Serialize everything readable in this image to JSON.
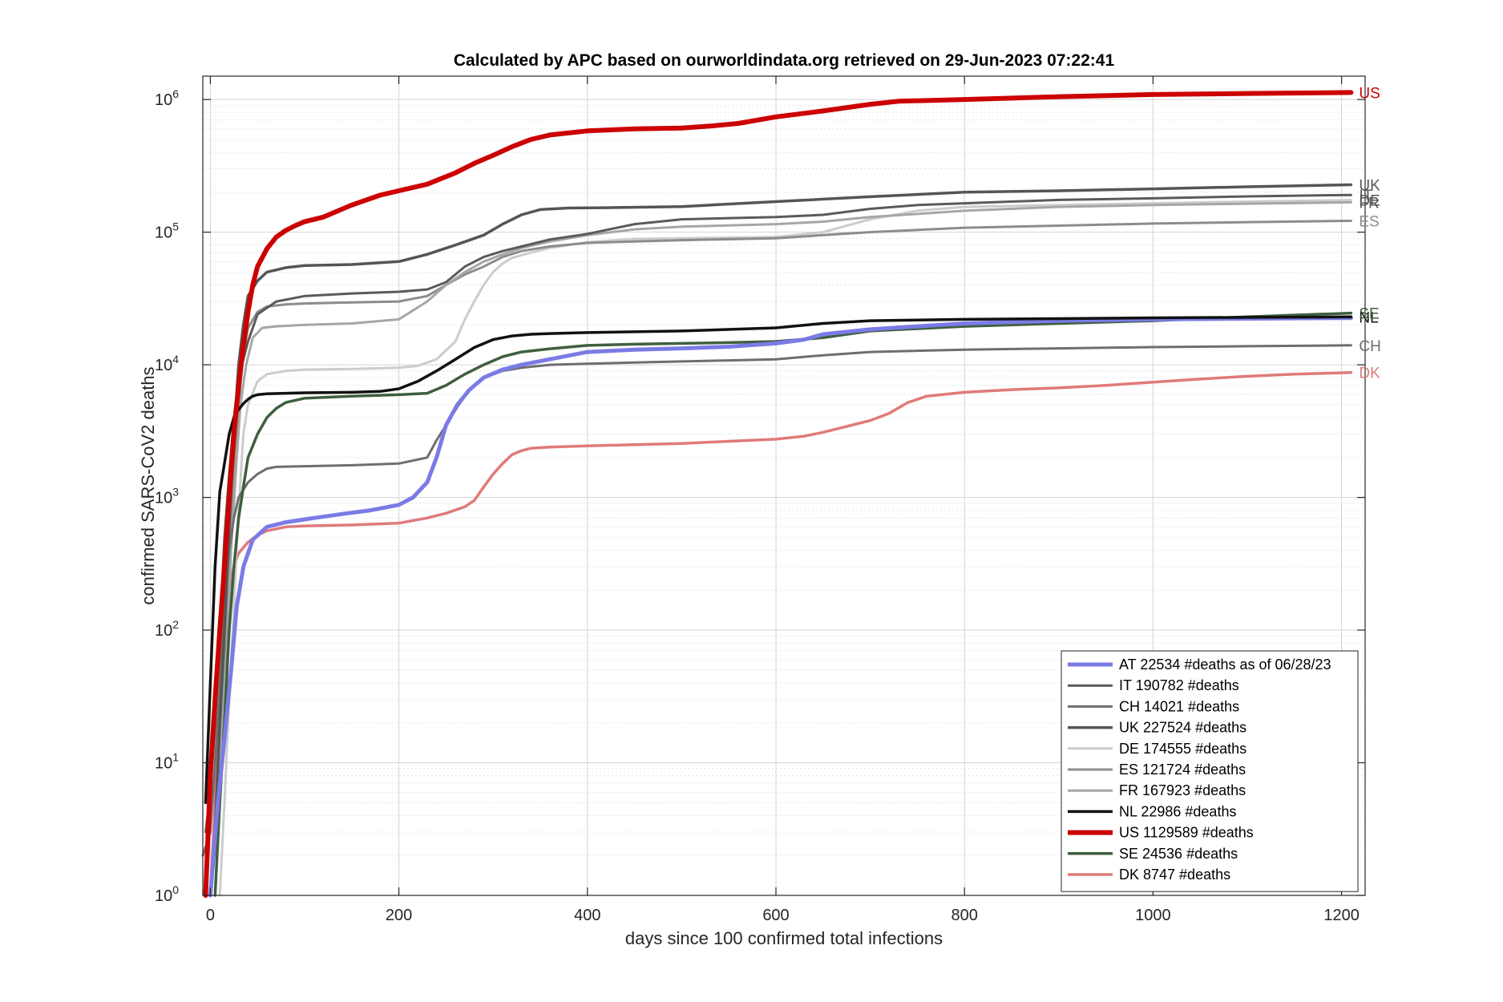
{
  "chart_data": {
    "type": "line",
    "title": "Calculated by APC based on ourworldindata.org retrieved on 29-Jun-2023 07:22:41",
    "xlabel": "days since 100 confirmed total infections",
    "ylabel": "confirmed SARS-CoV2 deaths",
    "xlim": [
      -8,
      1225
    ],
    "ylim": [
      1,
      1500000
    ],
    "yscale": "log",
    "grid": true,
    "legend_position": "bottom-right",
    "x_ticks": [
      {
        "value": 0,
        "label": "0"
      },
      {
        "value": 200,
        "label": "200"
      },
      {
        "value": 400,
        "label": "400"
      },
      {
        "value": 600,
        "label": "600"
      },
      {
        "value": 800,
        "label": "800"
      },
      {
        "value": 1000,
        "label": "1000"
      },
      {
        "value": 1200,
        "label": "1200"
      }
    ],
    "y_ticks": [
      {
        "value": 1,
        "base": "10",
        "exp": "0"
      },
      {
        "value": 10,
        "base": "10",
        "exp": "1"
      },
      {
        "value": 100,
        "base": "10",
        "exp": "2"
      },
      {
        "value": 1000,
        "base": "10",
        "exp": "3"
      },
      {
        "value": 10000,
        "base": "10",
        "exp": "4"
      },
      {
        "value": 100000,
        "base": "10",
        "exp": "5"
      },
      {
        "value": 1000000,
        "base": "10",
        "exp": "6"
      }
    ],
    "series": [
      {
        "name": "AT 22534 #deaths as of  06/28/23",
        "label": "",
        "color": "#7b7be6",
        "width": 5,
        "x": [
          0,
          8,
          15,
          22,
          28,
          35,
          45,
          60,
          80,
          110,
          140,
          170,
          200,
          215,
          230,
          240,
          250,
          262,
          275,
          290,
          310,
          330,
          360,
          400,
          450,
          500,
          550,
          600,
          630,
          650,
          700,
          750,
          800,
          900,
          1000,
          1100,
          1210
        ],
        "y": [
          1,
          5,
          15,
          50,
          150,
          300,
          480,
          600,
          650,
          700,
          750,
          800,
          880,
          1000,
          1300,
          2000,
          3500,
          5000,
          6500,
          8000,
          9200,
          10000,
          11000,
          12500,
          13000,
          13300,
          13700,
          14500,
          15500,
          17000,
          18500,
          19500,
          20500,
          21500,
          22000,
          22300,
          22534
        ]
      },
      {
        "name": "IT 190782 #deaths",
        "label": "IT",
        "color": "#5a5a5a",
        "width": 3,
        "x": [
          -5,
          0,
          5,
          10,
          15,
          20,
          25,
          30,
          40,
          50,
          70,
          100,
          150,
          200,
          230,
          250,
          270,
          290,
          310,
          330,
          360,
          400,
          450,
          500,
          600,
          650,
          700,
          750,
          800,
          900,
          1000,
          1100,
          1210
        ],
        "y": [
          3,
          6,
          20,
          100,
          500,
          1500,
          4000,
          8000,
          15000,
          24000,
          30000,
          33000,
          34500,
          35500,
          37000,
          42000,
          55000,
          65000,
          72000,
          78000,
          88000,
          97000,
          115000,
          125000,
          130000,
          135000,
          150000,
          160000,
          165000,
          175000,
          180000,
          186000,
          190782
        ]
      },
      {
        "name": "CH 14021 #deaths",
        "label": "CH",
        "color": "#6e6e6e",
        "width": 3,
        "x": [
          -8,
          0,
          5,
          10,
          15,
          20,
          25,
          30,
          40,
          50,
          60,
          70,
          100,
          150,
          200,
          230,
          240,
          250,
          262,
          275,
          290,
          310,
          330,
          360,
          400,
          450,
          500,
          550,
          600,
          650,
          700,
          800,
          900,
          1000,
          1100,
          1210
        ],
        "y": [
          2,
          3,
          10,
          40,
          150,
          400,
          700,
          1000,
          1300,
          1500,
          1650,
          1700,
          1720,
          1750,
          1800,
          2000,
          2700,
          3500,
          4800,
          6500,
          8000,
          9000,
          9500,
          10000,
          10200,
          10400,
          10600,
          10800,
          11000,
          11800,
          12500,
          13000,
          13300,
          13600,
          13800,
          14021
        ]
      },
      {
        "name": "UK 227524 #deaths",
        "label": "UK",
        "color": "#555555",
        "width": 3.5,
        "x": [
          5,
          10,
          15,
          20,
          25,
          30,
          35,
          40,
          50,
          60,
          80,
          100,
          150,
          200,
          230,
          260,
          290,
          310,
          330,
          350,
          380,
          420,
          500,
          600,
          700,
          800,
          900,
          1000,
          1100,
          1210
        ],
        "y": [
          3,
          20,
          100,
          600,
          3000,
          10000,
          20000,
          33000,
          43000,
          50000,
          54000,
          56000,
          57000,
          60000,
          68000,
          80000,
          95000,
          115000,
          135000,
          148000,
          152000,
          153000,
          156000,
          170000,
          185000,
          200000,
          205000,
          212000,
          220000,
          227524
        ]
      },
      {
        "name": "DE 174555 #deaths",
        "label": "DE",
        "color": "#cccccc",
        "width": 3,
        "x": [
          10,
          15,
          20,
          25,
          30,
          35,
          40,
          50,
          60,
          80,
          100,
          150,
          200,
          220,
          240,
          260,
          270,
          280,
          290,
          300,
          310,
          320,
          340,
          360,
          400,
          450,
          500,
          600,
          650,
          700,
          750,
          800,
          900,
          1000,
          1100,
          1210
        ],
        "y": [
          1,
          5,
          30,
          150,
          800,
          3000,
          5000,
          7500,
          8500,
          9000,
          9200,
          9300,
          9500,
          9800,
          11000,
          15000,
          22000,
          30000,
          40000,
          50000,
          58000,
          64000,
          70000,
          76000,
          84000,
          89000,
          90000,
          92000,
          100000,
          125000,
          145000,
          155000,
          160000,
          165000,
          170000,
          174555
        ]
      },
      {
        "name": "ES 121724 #deaths",
        "label": "ES",
        "color": "#8c8c8c",
        "width": 3,
        "x": [
          5,
          10,
          15,
          20,
          25,
          30,
          35,
          40,
          50,
          60,
          80,
          100,
          150,
          200,
          230,
          250,
          270,
          290,
          310,
          330,
          360,
          400,
          450,
          500,
          600,
          650,
          700,
          800,
          900,
          1000,
          1100,
          1210
        ],
        "y": [
          2,
          10,
          50,
          300,
          1500,
          5000,
          12000,
          19000,
          25000,
          27500,
          28500,
          29000,
          29500,
          30000,
          33000,
          40000,
          48000,
          55000,
          65000,
          72000,
          78000,
          83000,
          85000,
          87000,
          90000,
          95000,
          100000,
          108000,
          112000,
          116000,
          119000,
          121724
        ]
      },
      {
        "name": "FR 167923 #deaths",
        "label": "FR",
        "color": "#a6a6a6",
        "width": 3,
        "x": [
          8,
          12,
          18,
          22,
          28,
          32,
          38,
          45,
          55,
          70,
          100,
          150,
          200,
          230,
          250,
          270,
          290,
          310,
          330,
          360,
          400,
          450,
          500,
          600,
          650,
          700,
          800,
          900,
          1000,
          1100,
          1210
        ],
        "y": [
          3,
          15,
          80,
          400,
          2000,
          5000,
          10000,
          16000,
          19000,
          19500,
          20000,
          20500,
          22000,
          30000,
          40000,
          50000,
          60000,
          68000,
          76000,
          85000,
          95000,
          105000,
          110000,
          115000,
          120000,
          130000,
          145000,
          155000,
          160000,
          164000,
          167923
        ]
      },
      {
        "name": "NL 22986 #deaths",
        "label": "NL",
        "color": "#111111",
        "width": 3.5,
        "x": [
          -5,
          0,
          5,
          10,
          15,
          20,
          25,
          30,
          35,
          40,
          45,
          50,
          60,
          80,
          100,
          150,
          180,
          200,
          220,
          240,
          260,
          280,
          300,
          320,
          340,
          360,
          400,
          500,
          600,
          650,
          700,
          800,
          900,
          1000,
          1100,
          1210
        ],
        "y": [
          5,
          40,
          300,
          1100,
          1800,
          3000,
          4000,
          4600,
          5100,
          5500,
          5800,
          5950,
          6050,
          6100,
          6150,
          6200,
          6300,
          6600,
          7500,
          9000,
          11000,
          13500,
          15500,
          16500,
          17000,
          17200,
          17500,
          18000,
          19000,
          20500,
          21500,
          22000,
          22300,
          22600,
          22800,
          22986
        ]
      },
      {
        "name": "US 1129589 #deaths",
        "label": "US",
        "color": "#cc0000",
        "width": 6,
        "x": [
          -5,
          0,
          5,
          10,
          15,
          20,
          25,
          30,
          35,
          40,
          45,
          50,
          60,
          70,
          80,
          90,
          100,
          120,
          150,
          180,
          200,
          230,
          260,
          280,
          300,
          320,
          340,
          360,
          400,
          450,
          500,
          530,
          560,
          600,
          650,
          700,
          730,
          800,
          900,
          1000,
          1100,
          1210
        ],
        "y": [
          1,
          8,
          30,
          100,
          300,
          1000,
          3000,
          7000,
          14000,
          25000,
          40000,
          55000,
          75000,
          92000,
          103000,
          112000,
          120000,
          130000,
          160000,
          190000,
          205000,
          230000,
          280000,
          330000,
          380000,
          440000,
          500000,
          540000,
          580000,
          600000,
          610000,
          630000,
          660000,
          740000,
          820000,
          920000,
          970000,
          1000000,
          1050000,
          1090000,
          1110000,
          1129589
        ]
      },
      {
        "name": "SE 24536 #deaths",
        "label": "SE",
        "color": "#3f5f3f",
        "width": 3.5,
        "x": [
          5,
          10,
          15,
          20,
          25,
          30,
          35,
          40,
          50,
          60,
          70,
          80,
          100,
          150,
          200,
          230,
          250,
          270,
          290,
          310,
          330,
          360,
          400,
          450,
          500,
          550,
          600,
          650,
          700,
          800,
          900,
          1000,
          1100,
          1210
        ],
        "y": [
          1,
          5,
          20,
          100,
          300,
          700,
          1200,
          2000,
          3000,
          4000,
          4700,
          5200,
          5600,
          5800,
          5950,
          6100,
          7000,
          8500,
          10000,
          11500,
          12500,
          13200,
          14000,
          14300,
          14500,
          14700,
          15000,
          16000,
          18000,
          19500,
          20500,
          21500,
          23000,
          24536
        ]
      },
      {
        "name": "DK 8747 #deaths",
        "label": "DK",
        "color": "#e07a7a",
        "width": 3.5,
        "x": [
          0,
          5,
          10,
          15,
          20,
          25,
          30,
          40,
          50,
          60,
          80,
          100,
          150,
          200,
          230,
          250,
          270,
          280,
          290,
          300,
          310,
          320,
          330,
          340,
          360,
          400,
          450,
          500,
          550,
          600,
          630,
          650,
          680,
          700,
          720,
          740,
          760,
          800,
          850,
          900,
          950,
          1000,
          1050,
          1100,
          1150,
          1210
        ],
        "y": [
          1,
          5,
          30,
          100,
          200,
          300,
          380,
          460,
          520,
          560,
          600,
          610,
          620,
          640,
          700,
          760,
          850,
          950,
          1200,
          1500,
          1800,
          2100,
          2250,
          2350,
          2400,
          2450,
          2500,
          2550,
          2650,
          2750,
          2900,
          3100,
          3500,
          3800,
          4300,
          5200,
          5800,
          6200,
          6500,
          6700,
          7000,
          7400,
          7800,
          8200,
          8500,
          8747
        ]
      }
    ]
  }
}
